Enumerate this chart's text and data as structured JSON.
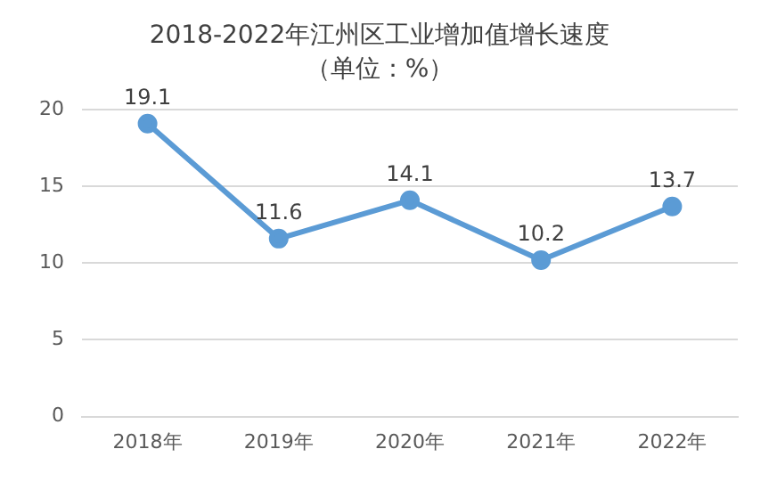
{
  "chart_data": {
    "type": "line",
    "title": "2018-2022年江州区工业增加值增长速度",
    "subtitle": "（单位：%）",
    "categories": [
      "2018年",
      "2019年",
      "2020年",
      "2021年",
      "2022年"
    ],
    "series": [
      {
        "color": "#5b9bd5",
        "values": [
          19.1,
          11.6,
          14.1,
          10.2,
          13.7
        ]
      }
    ],
    "ylim": [
      0,
      20
    ],
    "yticks": [
      0,
      5,
      10,
      15,
      20
    ],
    "grid": "y",
    "legend": false,
    "marker": "circle",
    "line_style": "solid",
    "data_labels": true
  }
}
